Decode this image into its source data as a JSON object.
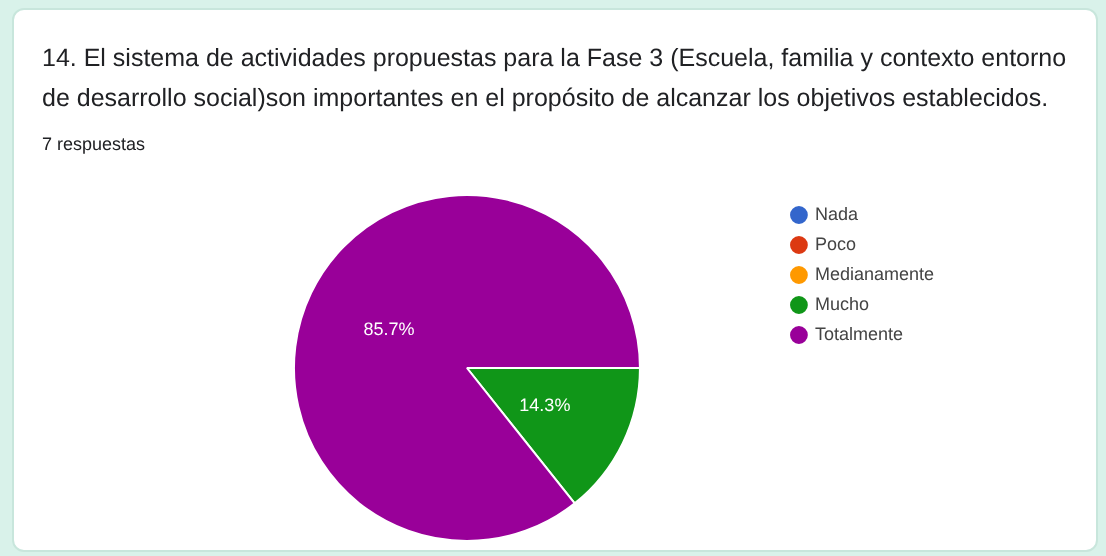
{
  "chart_data": {
    "type": "pie",
    "title": "14. El sistema de actividades propuestas para la Fase 3 (Escuela, familia y contexto entorno de desarrollo social)son importantes en el propósito de alcanzar los objetivos establecidos.",
    "subtitle": "7 respuestas",
    "categories": [
      "Nada",
      "Poco",
      "Medianamente",
      "Mucho",
      "Totalmente"
    ],
    "values": [
      0,
      0,
      0,
      14.3,
      85.7
    ],
    "colors": [
      "#3366cc",
      "#dc3912",
      "#ff9900",
      "#109618",
      "#990099"
    ],
    "value_labels": [
      null,
      null,
      null,
      "14.3%",
      "85.7%"
    ],
    "legend": "right"
  }
}
